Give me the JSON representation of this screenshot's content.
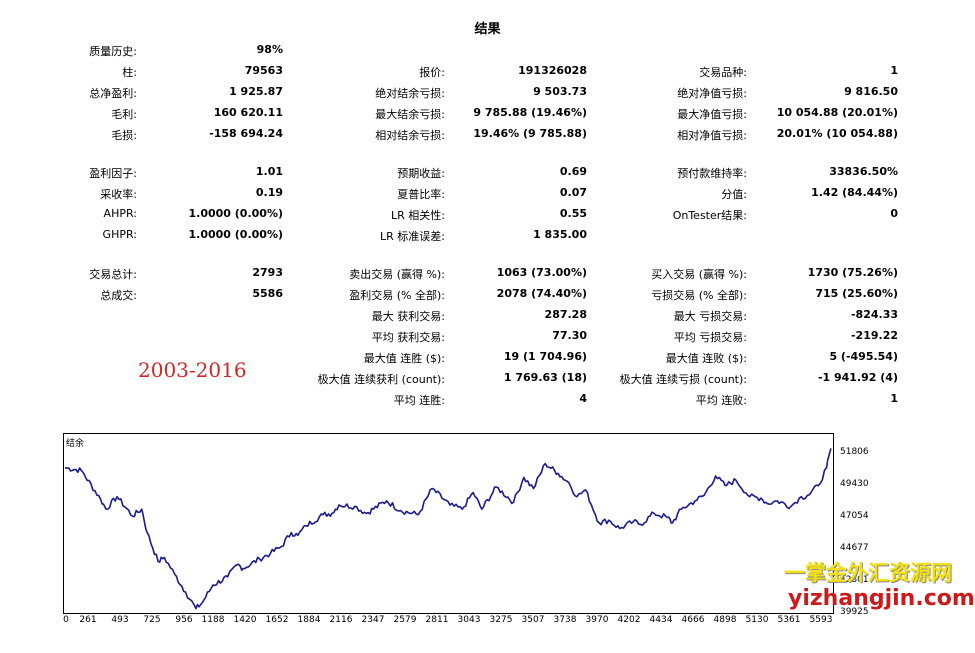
{
  "title": "结果",
  "col1": [
    {
      "label": "质量历史:",
      "value": "98%"
    },
    {
      "label": "柱:",
      "value": "79563"
    },
    {
      "label": "总净盈利:",
      "value": "1 925.87"
    },
    {
      "label": "毛利:",
      "value": "160 620.11"
    },
    {
      "label": "毛损:",
      "value": "-158 694.24"
    },
    {
      "label": "盈利因子:",
      "value": "1.01"
    },
    {
      "label": "采收率:",
      "value": "0.19"
    },
    {
      "label": "AHPR:",
      "value": "1.0000 (0.00%)"
    },
    {
      "label": "GHPR:",
      "value": "1.0000 (0.00%)"
    },
    {
      "label": "交易总计:",
      "value": "2793"
    },
    {
      "label": "总成交:",
      "value": "5586"
    }
  ],
  "col2": [
    {
      "label": "报价:",
      "value": "191326028"
    },
    {
      "label": "绝对结余亏损:",
      "value": "9 503.73"
    },
    {
      "label": "最大结余亏损:",
      "value": "9 785.88 (19.46%)"
    },
    {
      "label": "相对结余亏损:",
      "value": "19.46% (9 785.88)"
    },
    {
      "label": "预期收益:",
      "value": "0.69"
    },
    {
      "label": "夏普比率:",
      "value": "0.07"
    },
    {
      "label": "LR 相关性:",
      "value": "0.55"
    },
    {
      "label": "LR 标准误差:",
      "value": "1 835.00"
    },
    {
      "label": "卖出交易 (赢得 %):",
      "value": "1063 (73.00%)"
    },
    {
      "label": "盈利交易 (% 全部):",
      "value": "2078 (74.40%)"
    },
    {
      "label": "最大 获利交易:",
      "value": "287.28"
    },
    {
      "label": "平均 获利交易:",
      "value": "77.30"
    },
    {
      "label": "最大值 连胜 ($):",
      "value": "19 (1 704.96)"
    },
    {
      "label": "极大值 连续获利 (count):",
      "value": "1 769.63 (18)"
    },
    {
      "label": "平均 连胜:",
      "value": "4"
    }
  ],
  "col3": [
    {
      "label": "交易品种:",
      "value": "1"
    },
    {
      "label": "绝对净值亏损:",
      "value": "9 816.50"
    },
    {
      "label": "最大净值亏损:",
      "value": "10 054.88 (20.01%)"
    },
    {
      "label": "相对净值亏损:",
      "value": "20.01% (10 054.88)"
    },
    {
      "label": "预付款维持率:",
      "value": "33836.50%"
    },
    {
      "label": "分值:",
      "value": "1.42 (84.44%)"
    },
    {
      "label": "OnTester结果:",
      "value": "0"
    },
    {
      "label": "买入交易 (赢得 %):",
      "value": "1730 (75.26%)"
    },
    {
      "label": "亏损交易 (% 全部):",
      "value": "715 (25.60%)"
    },
    {
      "label": "最大 亏损交易:",
      "value": "-824.33"
    },
    {
      "label": "平均 亏损交易:",
      "value": "-219.22"
    },
    {
      "label": "最大值 连败 ($):",
      "value": "5 (-495.54)"
    },
    {
      "label": "极大值 连续亏损 (count):",
      "value": "-1 941.92 (4)"
    },
    {
      "label": "平均 连败:",
      "value": "1"
    }
  ],
  "annotation": "2003-2016",
  "watermark": {
    "line1": "一掌金外汇资源网",
    "line2": "yizhangjin.com"
  },
  "chart_data": {
    "type": "line",
    "title": "结余",
    "series_color": "#1a1a8c",
    "x_ticks": [
      "0",
      "261",
      "493",
      "725",
      "956",
      "1188",
      "1420",
      "1652",
      "1884",
      "2116",
      "2347",
      "2579",
      "2811",
      "3043",
      "3275",
      "3507",
      "3738",
      "3970",
      "4202",
      "4434",
      "4666",
      "4898",
      "5130",
      "5361",
      "5593"
    ],
    "y_ticks": [
      "51806",
      "49430",
      "47054",
      "44677",
      "42301",
      "39925"
    ],
    "ylim": [
      39925,
      52600
    ],
    "xlim": [
      0,
      5600
    ],
    "series": [
      {
        "x": [
          0,
          120,
          261,
          300,
          380,
          493,
          560,
          600,
          680,
          725,
          800,
          880,
          956,
          1000,
          1080,
          1188,
          1260,
          1300,
          1420,
          1500,
          1580,
          1652,
          1700,
          1760,
          1884,
          1950,
          2000,
          2116,
          2200,
          2347,
          2450,
          2579,
          2680,
          2811,
          2900,
          2980,
          3043,
          3150,
          3275,
          3350,
          3420,
          3507,
          3600,
          3680,
          3738,
          3800,
          3900,
          3970,
          4050,
          4150,
          4202,
          4300,
          4400,
          4434,
          4500,
          4600,
          4666,
          4750,
          4820,
          4898,
          5000,
          5080,
          5130,
          5200,
          5300,
          5361,
          5420,
          5500,
          5560,
          5593
        ],
        "y": [
          50300,
          50100,
          48000,
          47300,
          48200,
          46800,
          47300,
          45600,
          43500,
          43800,
          42600,
          41300,
          40100,
          40500,
          41800,
          42400,
          43300,
          43000,
          43700,
          44100,
          44600,
          45600,
          45400,
          46100,
          46900,
          47000,
          47600,
          47500,
          47000,
          47900,
          47200,
          46900,
          48800,
          47600,
          47300,
          48500,
          47300,
          48900,
          47800,
          49600,
          48800,
          50600,
          49900,
          49200,
          48200,
          48700,
          46300,
          46500,
          45900,
          46400,
          46200,
          47000,
          46700,
          46300,
          47300,
          47900,
          48300,
          49700,
          49000,
          49400,
          48200,
          48100,
          47700,
          47900,
          47500,
          48100,
          48300,
          49000,
          50300,
          51700
        ]
      }
    ]
  }
}
